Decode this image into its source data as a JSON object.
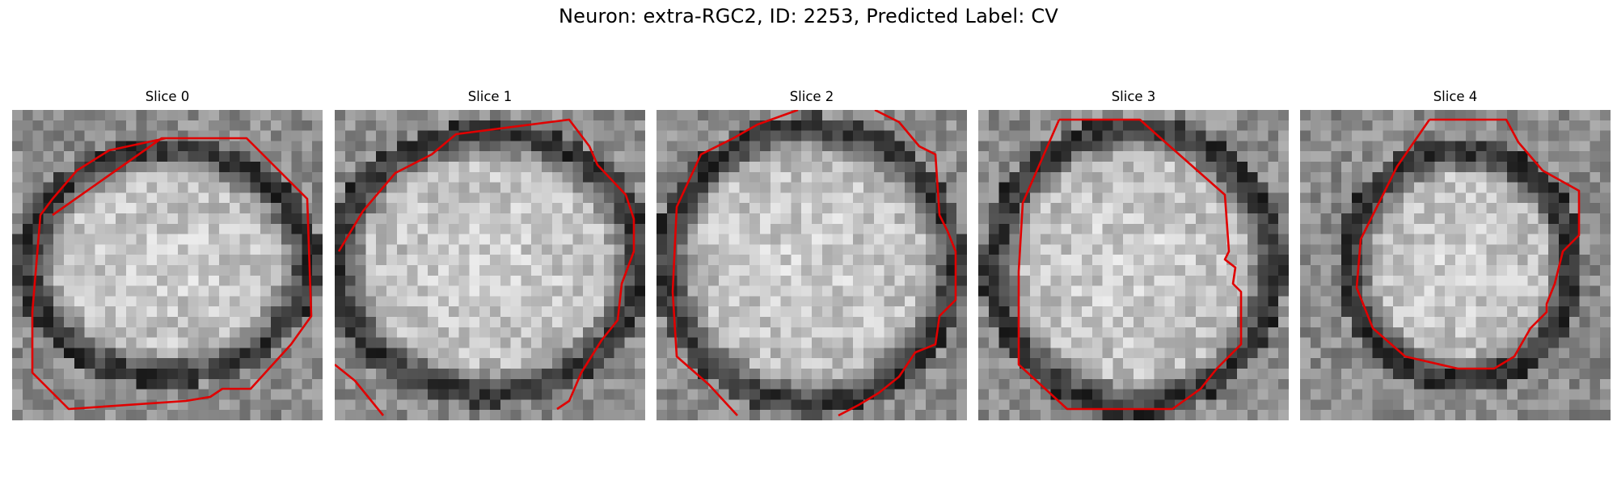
{
  "figure": {
    "title": "Neuron: extra-RGC2, ID: 2253, Predicted Label: CV"
  },
  "panels": [
    {
      "label": "Slice 0",
      "contour_color": "#e00000"
    },
    {
      "label": "Slice 1",
      "contour_color": "#e00000"
    },
    {
      "label": "Slice 2",
      "contour_color": "#e00000"
    },
    {
      "label": "Slice 3",
      "contour_color": "#e00000"
    },
    {
      "label": "Slice 4",
      "contour_color": "#e00000"
    }
  ]
}
